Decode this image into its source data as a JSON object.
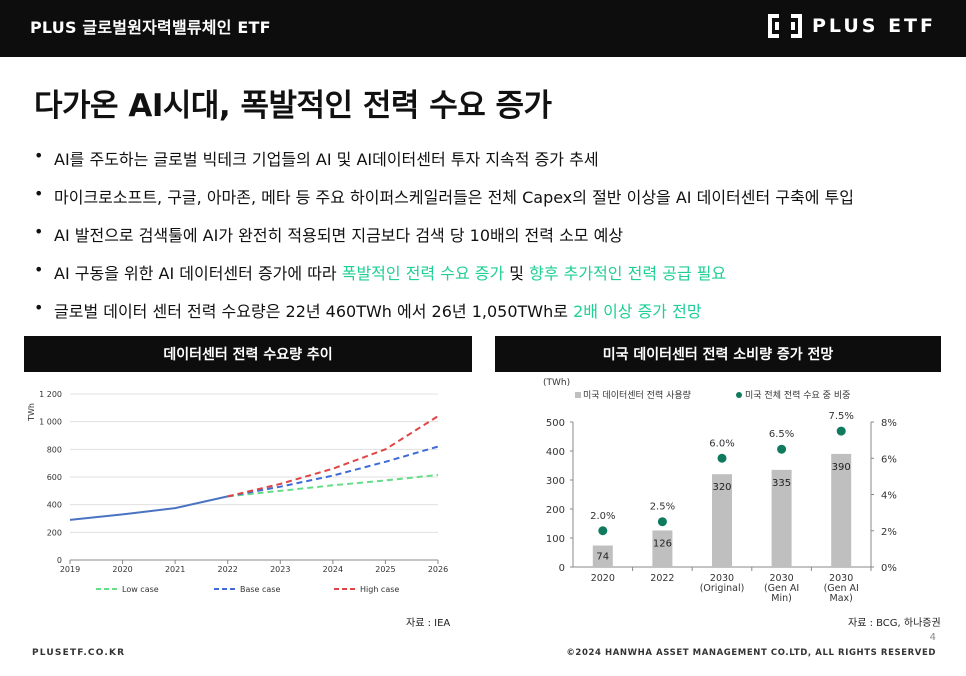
{
  "header": {
    "etf_name": "PLUS 글로벌원자력밸류체인 ETF",
    "logo_text": "PLUS ETF"
  },
  "page_title": "다가온 AI시대, 폭발적인 전력 수요 증가",
  "bullets": [
    {
      "segments": [
        {
          "text": "AI를 주도하는 글로벌 빅테크 기업들의 AI 및 AI데이터센터 투자 지속적 증가 추세",
          "highlight": false
        }
      ]
    },
    {
      "segments": [
        {
          "text": "마이크로소프트, 구글, 아마존, 메타 등 주요 하이퍼스케일러들은 전체 Capex의 절반 이상을 AI 데이터센터 구축에 투입",
          "highlight": false
        }
      ]
    },
    {
      "segments": [
        {
          "text": "AI 발전으로 검색툴에 AI가 완전히 적용되면 지금보다 검색 당 10배의 전력 소모 예상",
          "highlight": false
        }
      ]
    },
    {
      "segments": [
        {
          "text": "AI 구동을 위한 AI 데이터센터 증가에 따라 ",
          "highlight": false
        },
        {
          "text": "폭발적인 전력 수요 증가",
          "highlight": true
        },
        {
          "text": " 및 ",
          "highlight": false
        },
        {
          "text": "향후 추가적인 전력 공급 필요",
          "highlight": true
        }
      ]
    },
    {
      "segments": [
        {
          "text": "글로벌 데이터 센터 전력 수요량은 22년 460TWh 에서 26년 1,050TWh로 ",
          "highlight": false
        },
        {
          "text": "2배 이상 증가 전망",
          "highlight": true
        }
      ]
    }
  ],
  "colors": {
    "highlight": "#1fcf96",
    "header_bg": "#0d0d0d",
    "line_actual": "#4a74c2",
    "low": "#66dd88",
    "base": "#3f6ad8",
    "high": "#e04545",
    "bar": "#bfbfbf",
    "dot": "#0f7a5e"
  },
  "left_panel": {
    "title": "데이터센터 전력 수요량 추이",
    "source": "자료 : IEA"
  },
  "right_panel": {
    "title": "미국 데이터센터 전력 소비량 증가 전망",
    "source": "자료 : BCG, 하나증권"
  },
  "chart_data": [
    {
      "type": "line",
      "title": "",
      "ylabel": "TWh",
      "x": [
        2019,
        2020,
        2021,
        2022,
        2023,
        2024,
        2025,
        2026
      ],
      "ylim": [
        0,
        1200
      ],
      "yticks": [
        "0",
        "200",
        "400",
        "600",
        "800",
        "1 000",
        "1 200"
      ],
      "xticks": [
        "2019",
        "2020",
        "2021",
        "2022",
        "2023",
        "2024",
        "2025",
        "2026"
      ],
      "grid": true,
      "legend_position": "bottom",
      "series": [
        {
          "name": "",
          "style": "solid",
          "x": [
            2019,
            2020,
            2021,
            2022
          ],
          "values": [
            290,
            330,
            375,
            460
          ]
        },
        {
          "name": "Low case",
          "style": "dashed",
          "x": [
            2022,
            2023,
            2024,
            2025,
            2026
          ],
          "values": [
            460,
            500,
            540,
            575,
            615
          ]
        },
        {
          "name": "Base case",
          "style": "dashed",
          "x": [
            2022,
            2023,
            2024,
            2025,
            2026
          ],
          "values": [
            460,
            530,
            610,
            710,
            820
          ]
        },
        {
          "name": "High case",
          "style": "dashed",
          "x": [
            2022,
            2023,
            2024,
            2025,
            2026
          ],
          "values": [
            460,
            550,
            660,
            800,
            1040
          ]
        }
      ]
    },
    {
      "type": "bar",
      "title": "",
      "ylabel": "(TWh)",
      "categories": [
        "2020",
        "2022",
        "2030\n(Original)",
        "2030\n(Gen AI\nMin)",
        "2030\n(Gen AI\nMax)"
      ],
      "ylim": [
        0,
        500
      ],
      "yticks": [
        "0",
        "100",
        "200",
        "300",
        "400",
        "500"
      ],
      "y2lim": [
        0,
        8
      ],
      "y2ticks": [
        "0%",
        "2%",
        "4%",
        "6%",
        "8%"
      ],
      "legend_position": "top",
      "series": [
        {
          "name": "미국 데이터센터 전력 사용량",
          "type": "bar",
          "values": [
            74,
            126,
            320,
            335,
            390
          ]
        },
        {
          "name": "미국 전체 전력 수요 중 비중",
          "type": "scatter",
          "axis": "right",
          "values": [
            2.0,
            2.5,
            6.0,
            6.5,
            7.5
          ],
          "labels": [
            "2.0%",
            "2.5%",
            "6.0%",
            "6.5%",
            "7.5%"
          ]
        }
      ]
    }
  ],
  "footer": {
    "left": "PLUSETF.CO.KR",
    "right": "©2024 HANWHA ASSET MANAGEMENT CO.LTD, ALL RIGHTS RESERVED",
    "page_number": "4"
  }
}
